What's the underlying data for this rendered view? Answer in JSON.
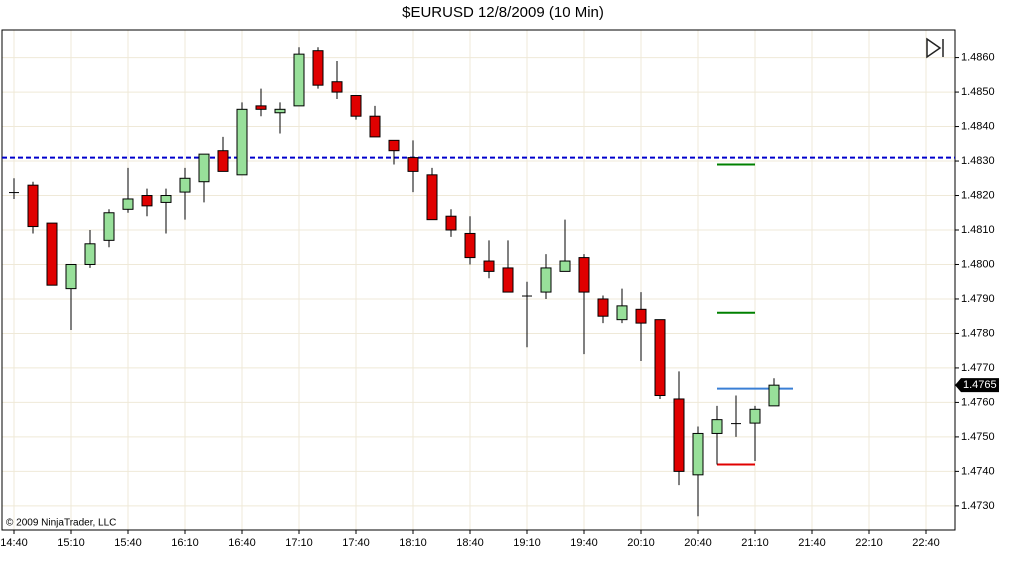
{
  "chart_data": {
    "type": "candlestick",
    "title": "$EURUSD  12/8/2009 (10 Min)",
    "annotations": [
      "© 2009 NinjaTrader, LLC"
    ],
    "categories": [
      "14:40",
      null,
      null,
      "15:10",
      null,
      null,
      "15:40",
      null,
      null,
      "16:10",
      null,
      null,
      "16:40",
      null,
      null,
      "17:10",
      null,
      null,
      "17:40",
      null,
      null,
      "18:10",
      null,
      null,
      "18:40",
      null,
      null,
      "19:10",
      null,
      null,
      "19:40",
      null,
      null,
      "20:10",
      null,
      null,
      "20:40",
      null,
      null,
      "21:10",
      null,
      null,
      "21:40",
      null,
      null,
      "22:10",
      null,
      null,
      "22:40"
    ],
    "open": [
      1.4821,
      1.4823,
      1.4812,
      1.4793,
      1.48,
      1.4807,
      1.4816,
      1.482,
      1.4818,
      1.4821,
      1.4824,
      1.4833,
      1.4826,
      1.4846,
      1.4844,
      1.4846,
      1.4862,
      1.4853,
      1.4849,
      1.4843,
      1.4836,
      1.4831,
      1.4826,
      1.4814,
      1.4809,
      1.4801,
      1.4799,
      1.4791,
      1.4792,
      1.4798,
      1.4802,
      1.479,
      1.4784,
      1.4787,
      1.4784,
      1.4761,
      1.4739,
      1.4751,
      1.4754,
      1.4754,
      1.4759,
      null,
      null,
      null,
      null,
      null,
      null,
      null,
      null
    ],
    "high": [
      1.4825,
      1.4824,
      1.4812,
      1.48,
      1.481,
      1.4816,
      1.4828,
      1.4822,
      1.4822,
      1.4828,
      1.4832,
      1.4837,
      1.4847,
      1.4851,
      1.4847,
      1.4863,
      1.4863,
      1.4859,
      1.4849,
      1.4846,
      1.4836,
      1.4836,
      1.4828,
      1.4816,
      1.4814,
      1.4807,
      1.4807,
      1.4795,
      1.4803,
      1.4813,
      1.4803,
      1.4791,
      1.4793,
      1.4792,
      1.4784,
      1.4769,
      1.4753,
      1.4759,
      1.4762,
      1.4759,
      1.4767,
      null,
      null,
      null,
      null,
      null,
      null,
      null,
      null
    ],
    "low": [
      1.4819,
      1.4809,
      1.4794,
      1.4781,
      1.4799,
      1.4805,
      1.4815,
      1.4814,
      1.4809,
      1.4813,
      1.4818,
      1.4827,
      1.4826,
      1.4843,
      1.4838,
      1.4846,
      1.4851,
      1.4848,
      1.4842,
      1.4837,
      1.4829,
      1.4821,
      1.4813,
      1.4808,
      1.48,
      1.4796,
      1.4792,
      1.4776,
      1.479,
      1.4798,
      1.4774,
      1.4783,
      1.4783,
      1.4772,
      1.4761,
      1.4736,
      1.4727,
      1.4742,
      1.475,
      1.4743,
      1.4759,
      null,
      null,
      null,
      null,
      null,
      null,
      null,
      null
    ],
    "close": [
      1.4821,
      1.4811,
      1.4794,
      1.48,
      1.4806,
      1.4815,
      1.4819,
      1.4817,
      1.482,
      1.4825,
      1.4832,
      1.4827,
      1.4845,
      1.4845,
      1.4845,
      1.4861,
      1.4852,
      1.485,
      1.4843,
      1.4837,
      1.4833,
      1.4827,
      1.4813,
      1.481,
      1.4802,
      1.4798,
      1.4792,
      1.4791,
      1.4799,
      1.4801,
      1.4792,
      1.4785,
      1.4788,
      1.4783,
      1.4762,
      1.474,
      1.4751,
      1.4755,
      1.4754,
      1.4758,
      1.4765,
      null,
      null,
      null,
      null,
      null,
      null,
      null,
      null
    ],
    "up_color": "#98e09a",
    "down_color": "#e00000",
    "ylim": [
      1.4723,
      1.4868
    ],
    "yticks": [
      {
        "value": 1.473,
        "label": "1.4730"
      },
      {
        "value": 1.474,
        "label": "1.4740"
      },
      {
        "value": 1.475,
        "label": "1.4750"
      },
      {
        "value": 1.476,
        "label": "1.4760"
      },
      {
        "value": 1.477,
        "label": "1.4770"
      },
      {
        "value": 1.478,
        "label": "1.4780"
      },
      {
        "value": 1.479,
        "label": "1.4790"
      },
      {
        "value": 1.48,
        "label": "1.4800"
      },
      {
        "value": 1.481,
        "label": "1.4810"
      },
      {
        "value": 1.482,
        "label": "1.4820"
      },
      {
        "value": 1.483,
        "label": "1.4830"
      },
      {
        "value": 1.484,
        "label": "1.4840"
      },
      {
        "value": 1.485,
        "label": "1.4850"
      },
      {
        "value": 1.486,
        "label": "1.4860"
      }
    ],
    "grid": true,
    "price_lines": [
      {
        "value": 1.4831,
        "color": "#0000cc",
        "style": "dashed"
      },
      {
        "value": 1.4829,
        "color": "#008000",
        "style": "solid"
      },
      {
        "value": 1.4786,
        "color": "#008000",
        "style": "solid"
      },
      {
        "value": 1.4742,
        "color": "#e00000",
        "style": "solid"
      },
      {
        "value": 1.4764,
        "color": "#3a7fd5",
        "style": "solid"
      }
    ],
    "last_price": 1.4765
  }
}
